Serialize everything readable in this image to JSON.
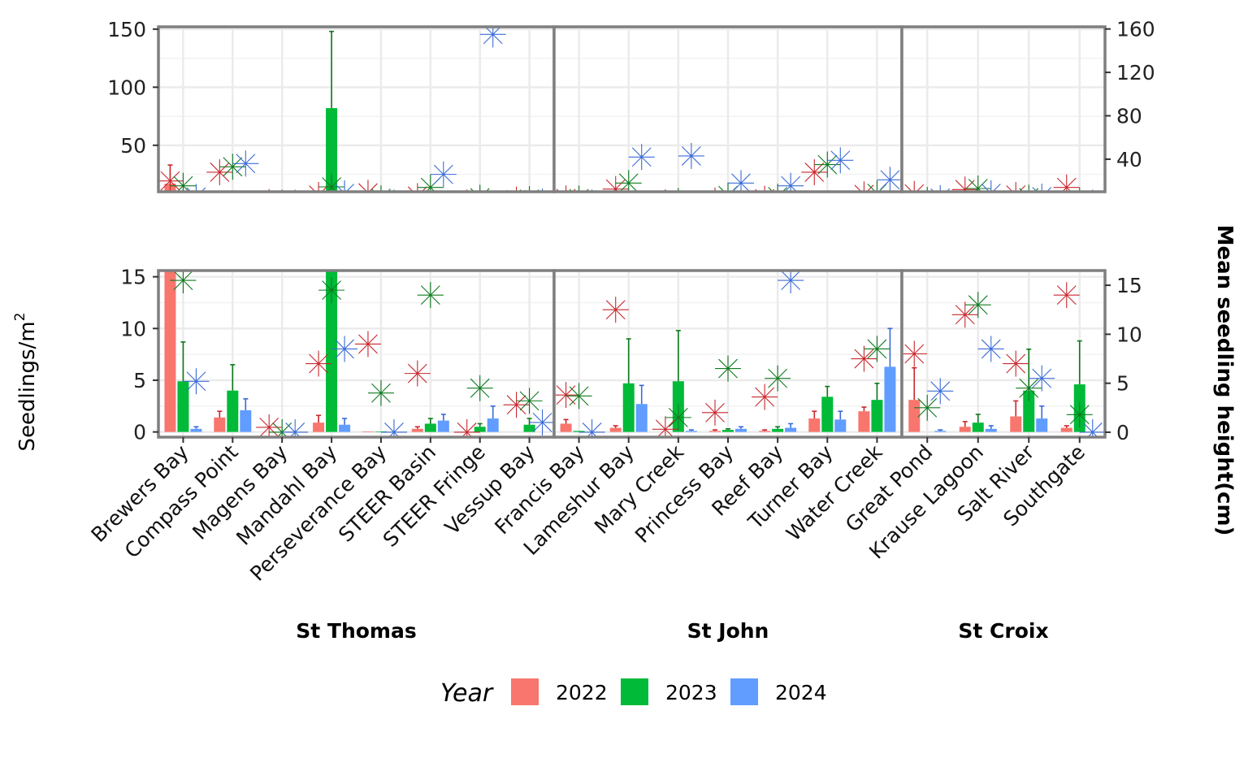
{
  "chart_data": {
    "type": "bar",
    "y_left_label": "Seedlings/m",
    "y_left_label_sup": "2",
    "y_right_label": "Mean seedling height(cm)",
    "legend": {
      "title": "Year",
      "placement": "bottom",
      "entries": [
        "2022",
        "2023",
        "2024"
      ]
    },
    "series_colors": {
      "2022": "#F8766D",
      "2023": "#00BA38",
      "2024": "#619CFF"
    },
    "marker_colors": {
      "2022": "#C8272D",
      "2023": "#0E7A1E",
      "2024": "#3A6BD6"
    },
    "marker": "asterisk",
    "islands": [
      {
        "name": "St Thomas",
        "sites": [
          "Brewers Bay",
          "Compass Point",
          "Magens Bay",
          "Mandahl Bay",
          "Perseverance Bay",
          "STEER Basin",
          "STEER Fringe",
          "Vessup Bay"
        ]
      },
      {
        "name": "St John",
        "sites": [
          "Francis Bay",
          "Lameshur Bay",
          "Mary Creek",
          "Princess Bay",
          "Reef Bay",
          "Turner Bay",
          "Water Creek"
        ]
      },
      {
        "name": "St Croix",
        "sites": [
          "Great Pond",
          "Krause Lagoon",
          "Salt River",
          "Southgate"
        ]
      }
    ],
    "panels": {
      "upper": {
        "left_ylim": [
          10,
          152
        ],
        "left_ticks": [
          50,
          100,
          150
        ],
        "right_ylim": [
          10,
          162
        ],
        "right_ticks": [
          40,
          80,
          120,
          160
        ],
        "grid": true
      },
      "lower": {
        "left_ylim": [
          -0.5,
          15.6
        ],
        "left_ticks": [
          0,
          5,
          10,
          15
        ],
        "right_ylim": [
          -0.5,
          16.5
        ],
        "right_ticks": [
          0,
          5,
          10,
          15
        ],
        "grid": true
      }
    },
    "density": {
      "2022": [
        17.0,
        1.4,
        0.0,
        0.9,
        0.05,
        0.3,
        0.0,
        0.0,
        0.8,
        0.4,
        0.0,
        0.1,
        0.1,
        1.3,
        2.0,
        3.1,
        0.5,
        1.5,
        0.4
      ],
      "2023": [
        4.9,
        4.0,
        0.0,
        82.0,
        0.05,
        0.8,
        0.5,
        0.7,
        0.1,
        4.7,
        4.9,
        0.2,
        0.3,
        3.4,
        3.1,
        0.0,
        0.9,
        4.0,
        4.6
      ],
      "2024": [
        0.3,
        2.1,
        0.0,
        0.7,
        0.0,
        1.1,
        1.3,
        0.0,
        0.0,
        2.7,
        0.1,
        0.3,
        0.4,
        1.2,
        6.3,
        0.1,
        0.3,
        1.3,
        0.0
      ]
    },
    "density_error": {
      "2022": [
        16.0,
        0.6,
        0.0,
        0.7,
        0.0,
        0.2,
        0.0,
        0.0,
        0.4,
        0.2,
        0.0,
        0.1,
        0.1,
        0.7,
        0.4,
        3.1,
        0.5,
        1.5,
        0.2
      ],
      "2023": [
        3.8,
        2.5,
        0.0,
        66.0,
        0.0,
        0.5,
        0.3,
        0.6,
        0.0,
        4.3,
        4.9,
        0.1,
        0.2,
        1.0,
        1.6,
        0.0,
        0.8,
        4.0,
        4.2
      ],
      "2024": [
        0.2,
        1.1,
        0.0,
        0.6,
        0.0,
        0.6,
        1.2,
        0.0,
        0.0,
        1.8,
        0.1,
        0.2,
        0.4,
        0.8,
        3.7,
        0.1,
        0.3,
        1.2,
        0.0
      ]
    },
    "height": {
      "2022": [
        20.0,
        28.0,
        0.5,
        7.0,
        9.0,
        6.0,
        0.0,
        2.8,
        3.8,
        12.5,
        0.3,
        2.0,
        3.6,
        28.0,
        7.5,
        8.0,
        12.0,
        7.0,
        14.0
      ],
      "2023": [
        15.5,
        33.0,
        0.0,
        14.5,
        4.0,
        14.0,
        4.5,
        3.2,
        3.7,
        18.0,
        1.5,
        6.5,
        5.5,
        35.0,
        8.5,
        2.5,
        13.0,
        4.5,
        1.8
      ],
      "2024": [
        5.2,
        36.0,
        0.0,
        8.5,
        0.0,
        26.0,
        155.0,
        1.0,
        0.0,
        42.0,
        43.0,
        18.0,
        15.5,
        39.0,
        21.0,
        4.2,
        8.5,
        5.5,
        0.0
      ]
    }
  }
}
